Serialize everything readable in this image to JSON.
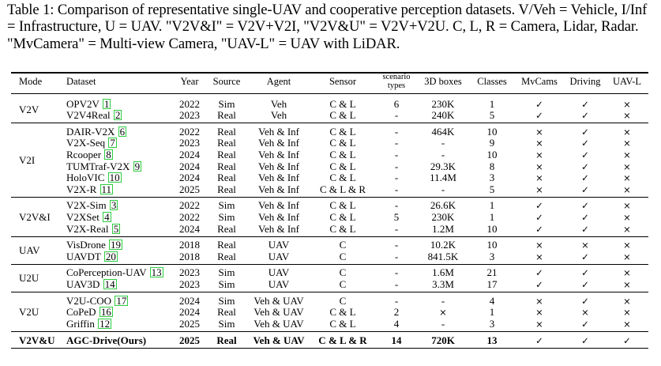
{
  "caption": "Table 1: Comparison of representative single-UAV and cooperative perception datasets. V/Veh = Vehicle, I/Inf = Infrastructure, U = UAV. \"V2V&I\" = V2V+V2I, \"V2V&U\" = V2V+V2U. C, L, R = Camera, Lidar, Radar. \"MvCamera\" = Multi-view Camera, \"UAV-L\" = UAV with LiDAR.",
  "headers": {
    "mode": "Mode",
    "dataset": "Dataset",
    "year": "Year",
    "source": "Source",
    "agent": "Agent",
    "sensor": "Sensor",
    "scenario_line1": "scenario",
    "scenario_line2": "types",
    "boxes": "3D boxes",
    "classes": "Classes",
    "mvcams": "MvCams",
    "driving": "Driving",
    "uavl": "UAV-L"
  },
  "groups": [
    {
      "mode": "V2V",
      "rows": [
        {
          "name": "OPV2V",
          "ref": "1",
          "year": "2022",
          "source": "Sim",
          "agent": "Veh",
          "sensor": "C & L",
          "scenario": "6",
          "boxes": "230K",
          "classes": "1",
          "mvcams": "✓",
          "driving": "✓",
          "uavl": "×"
        },
        {
          "name": "V2V4Real",
          "ref": "2",
          "year": "2023",
          "source": "Real",
          "agent": "Veh",
          "sensor": "C & L",
          "scenario": "-",
          "boxes": "240K",
          "classes": "5",
          "mvcams": "✓",
          "driving": "✓",
          "uavl": "×"
        }
      ]
    },
    {
      "mode": "V2I",
      "rows": [
        {
          "name": "DAIR-V2X",
          "ref": "6",
          "year": "2022",
          "source": "Real",
          "agent": "Veh & Inf",
          "sensor": "C & L",
          "scenario": "-",
          "boxes": "464K",
          "classes": "10",
          "mvcams": "×",
          "driving": "✓",
          "uavl": "×"
        },
        {
          "name": "V2X-Seq",
          "ref": "7",
          "year": "2023",
          "source": "Real",
          "agent": "Veh & Inf",
          "sensor": "C & L",
          "scenario": "-",
          "boxes": "-",
          "classes": "9",
          "mvcams": "×",
          "driving": "✓",
          "uavl": "×"
        },
        {
          "name": "Rcooper",
          "ref": "8",
          "year": "2024",
          "source": "Real",
          "agent": "Veh & Inf",
          "sensor": "C & L",
          "scenario": "-",
          "boxes": "-",
          "classes": "10",
          "mvcams": "×",
          "driving": "✓",
          "uavl": "×"
        },
        {
          "name": "TUMTraf-V2X",
          "ref": "9",
          "year": "2024",
          "source": "Real",
          "agent": "Veh & Inf",
          "sensor": "C & L",
          "scenario": "-",
          "boxes": "29.3K",
          "classes": "8",
          "mvcams": "×",
          "driving": "✓",
          "uavl": "×"
        },
        {
          "name": "HoloVIC",
          "ref": "10",
          "year": "2024",
          "source": "Real",
          "agent": "Veh & Inf",
          "sensor": "C & L",
          "scenario": "-",
          "boxes": "11.4M",
          "classes": "3",
          "mvcams": "×",
          "driving": "✓",
          "uavl": "×"
        },
        {
          "name": "V2X-R",
          "ref": "11",
          "year": "2025",
          "source": "Real",
          "agent": "Veh & Inf",
          "sensor": "C & L & R",
          "scenario": "-",
          "boxes": "-",
          "classes": "5",
          "mvcams": "×",
          "driving": "✓",
          "uavl": "×"
        }
      ]
    },
    {
      "mode": "V2V&I",
      "rows": [
        {
          "name": "V2X-Sim",
          "ref": "3",
          "year": "2022",
          "source": "Sim",
          "agent": "Veh & Inf",
          "sensor": "C & L",
          "scenario": "-",
          "boxes": "26.6K",
          "classes": "1",
          "mvcams": "✓",
          "driving": "✓",
          "uavl": "×"
        },
        {
          "name": "V2XSet",
          "ref": "4",
          "year": "2022",
          "source": "Sim",
          "agent": "Veh & Inf",
          "sensor": "C & L",
          "scenario": "5",
          "boxes": "230K",
          "classes": "1",
          "mvcams": "✓",
          "driving": "✓",
          "uavl": "×"
        },
        {
          "name": "V2X-Real",
          "ref": "5",
          "year": "2024",
          "source": "Real",
          "agent": "Veh & Inf",
          "sensor": "C & L",
          "scenario": "-",
          "boxes": "1.2M",
          "classes": "10",
          "mvcams": "✓",
          "driving": "✓",
          "uavl": "×"
        }
      ]
    },
    {
      "mode": "UAV",
      "rows": [
        {
          "name": "VisDrone",
          "ref": "19",
          "year": "2018",
          "source": "Real",
          "agent": "UAV",
          "sensor": "C",
          "scenario": "-",
          "boxes": "10.2K",
          "classes": "10",
          "mvcams": "×",
          "driving": "×",
          "uavl": "×"
        },
        {
          "name": "UAVDT",
          "ref": "20",
          "year": "2018",
          "source": "Real",
          "agent": "UAV",
          "sensor": "C",
          "scenario": "-",
          "boxes": "841.5K",
          "classes": "3",
          "mvcams": "×",
          "driving": "✓",
          "uavl": "×"
        }
      ]
    },
    {
      "mode": "U2U",
      "rows": [
        {
          "name": "CoPerception-UAV",
          "ref": "13",
          "year": "2023",
          "source": "Sim",
          "agent": "UAV",
          "sensor": "C",
          "scenario": "-",
          "boxes": "1.6M",
          "classes": "21",
          "mvcams": "✓",
          "driving": "✓",
          "uavl": "×"
        },
        {
          "name": "UAV3D",
          "ref": "14",
          "year": "2023",
          "source": "Sim",
          "agent": "UAV",
          "sensor": "C",
          "scenario": "-",
          "boxes": "3.3M",
          "classes": "17",
          "mvcams": "✓",
          "driving": "✓",
          "uavl": "×"
        }
      ]
    },
    {
      "mode": "V2U",
      "rows": [
        {
          "name": "V2U-COO",
          "ref": "17",
          "year": "2024",
          "source": "Sim",
          "agent": "Veh & UAV",
          "sensor": "C",
          "scenario": "-",
          "boxes": "-",
          "classes": "4",
          "mvcams": "×",
          "driving": "✓",
          "uavl": "×"
        },
        {
          "name": "CoPeD",
          "ref": "16",
          "year": "2024",
          "source": "Real",
          "agent": "Veh & UAV",
          "sensor": "C & L",
          "scenario": "2",
          "boxes": "×",
          "classes": "1",
          "mvcams": "×",
          "driving": "×",
          "uavl": "×"
        },
        {
          "name": "Griffin",
          "ref": "12",
          "year": "2025",
          "source": "Sim",
          "agent": "Veh & UAV",
          "sensor": "C & L",
          "scenario": "4",
          "boxes": "-",
          "classes": "3",
          "mvcams": "×",
          "driving": "✓",
          "uavl": "×"
        }
      ]
    }
  ],
  "ours": {
    "mode": "V2V&U",
    "name": "AGC-Drive(Ours)",
    "year": "2025",
    "source": "Real",
    "agent": "Veh & UAV",
    "sensor": "C & L & R",
    "scenario": "14",
    "boxes": "720K",
    "classes": "13",
    "mvcams": "✓",
    "driving": "✓",
    "uavl": "✓"
  }
}
